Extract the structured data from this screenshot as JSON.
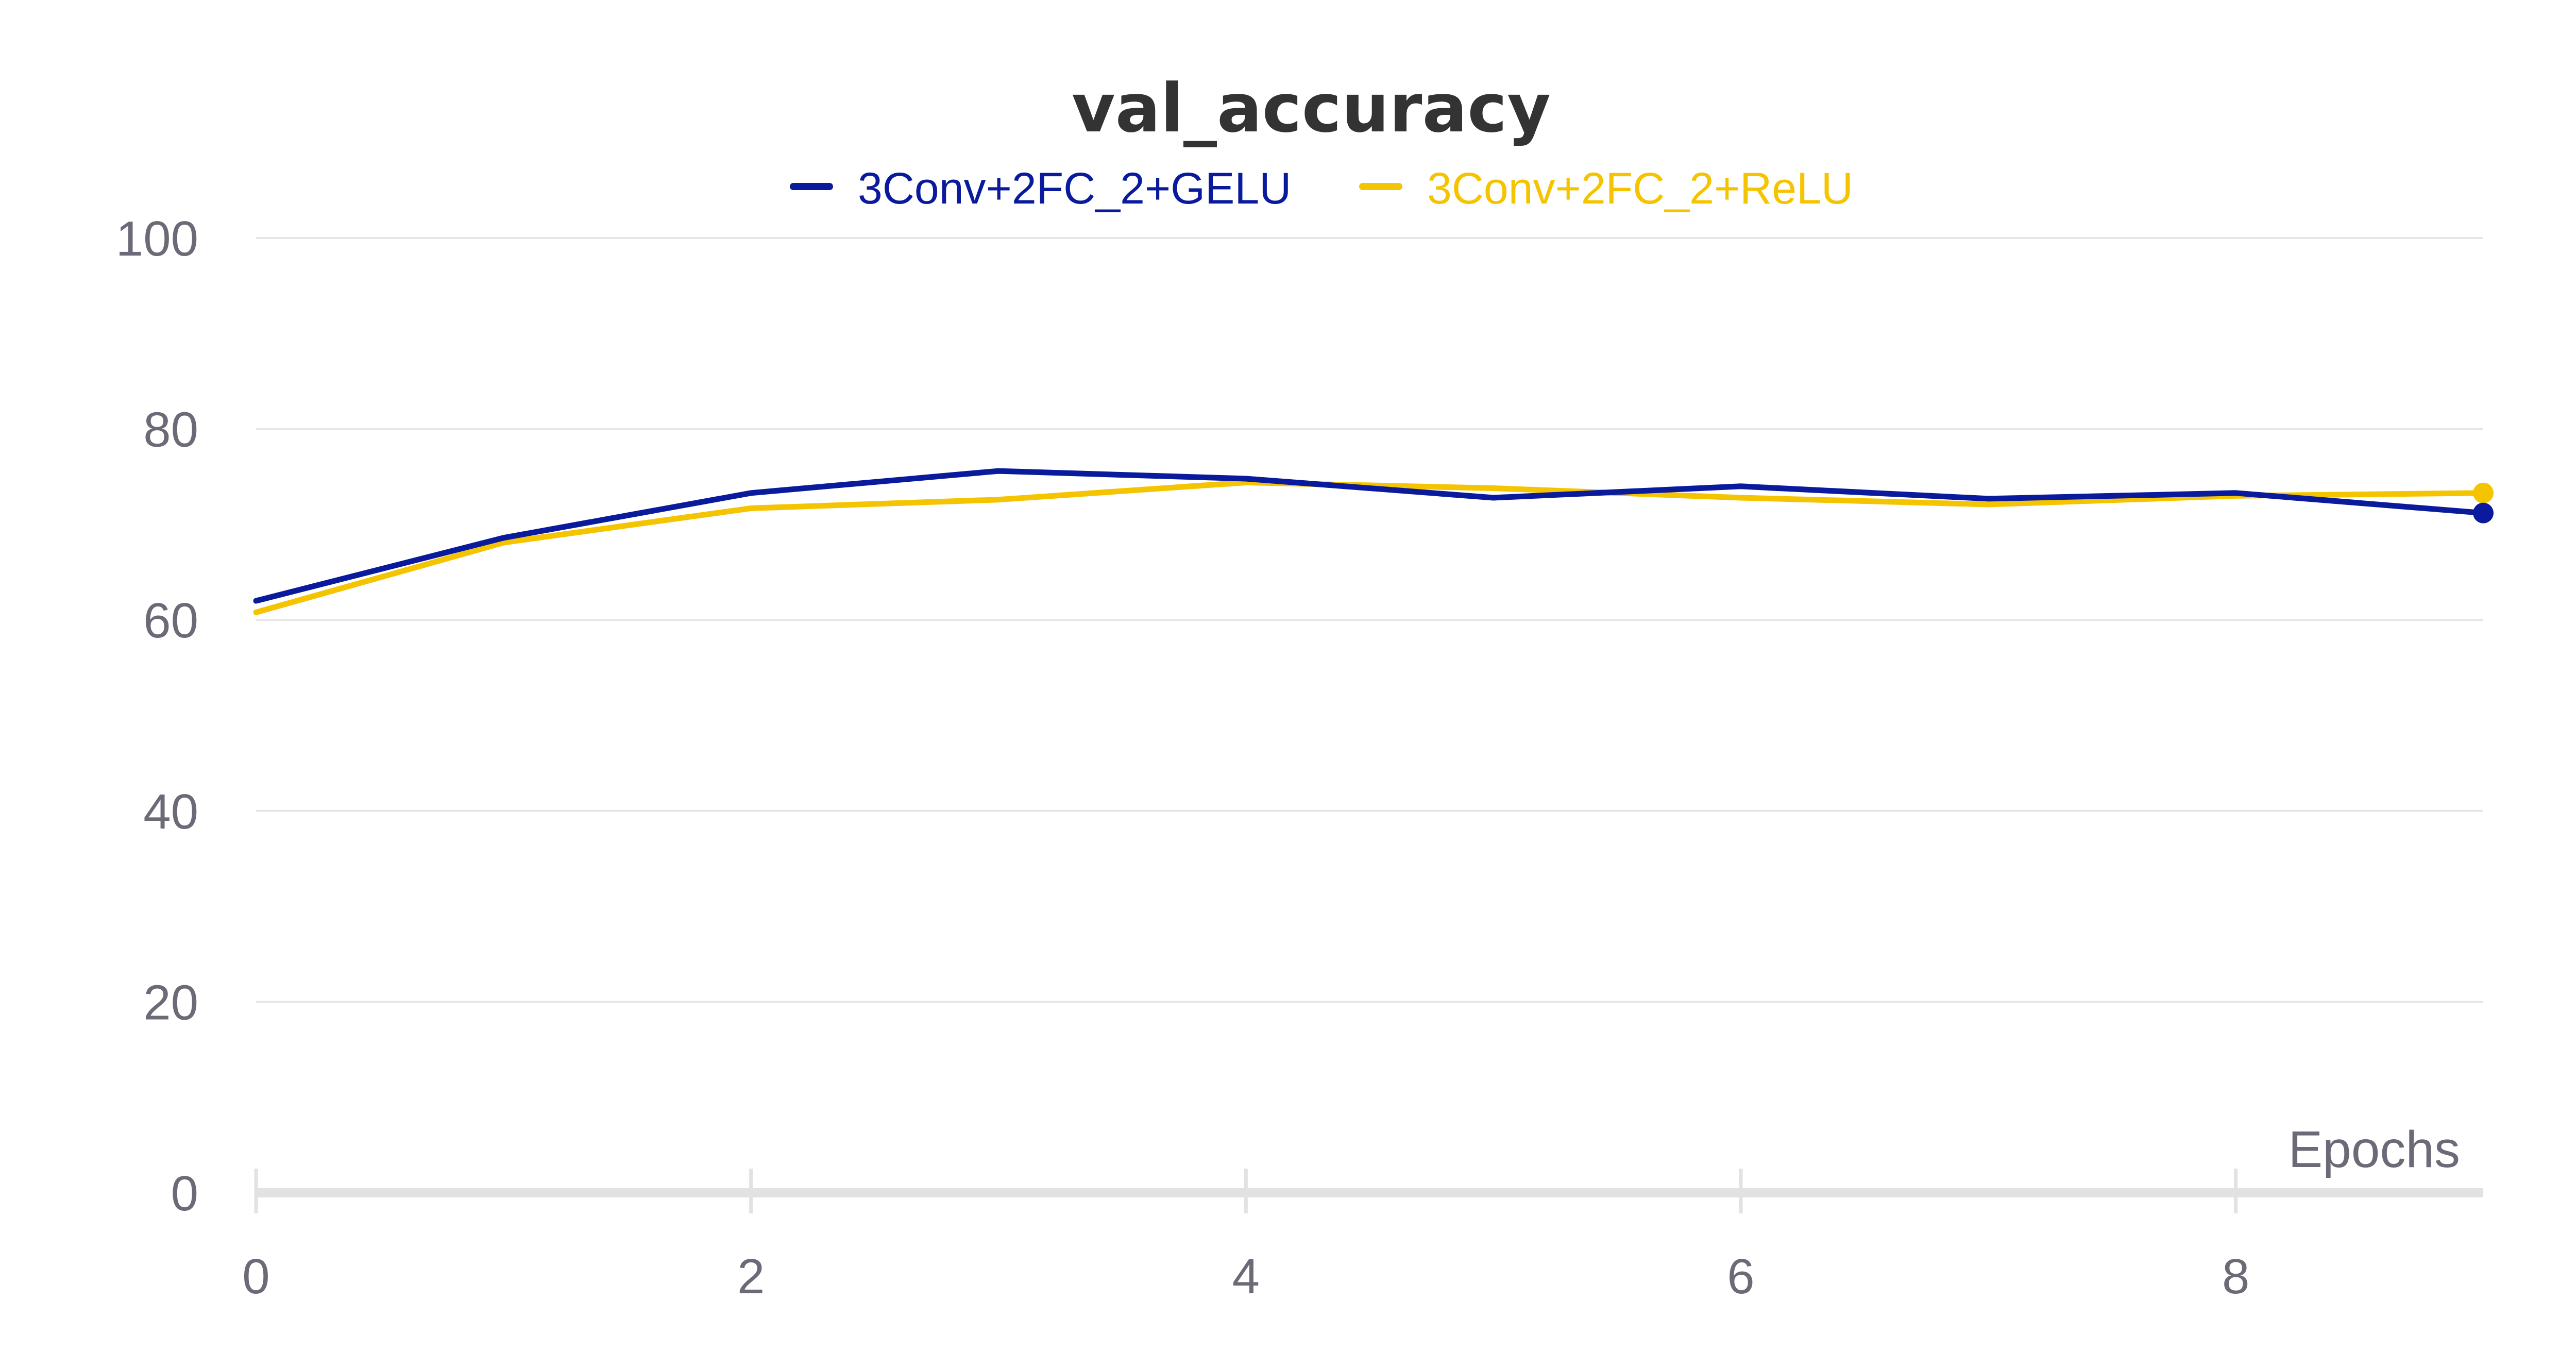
{
  "chart_data": {
    "type": "line",
    "title": "val_accuracy",
    "xlabel": "Epochs",
    "ylabel": "",
    "xlim": [
      0,
      9
    ],
    "ylim": [
      0,
      100
    ],
    "x_ticks": [
      "0",
      "2",
      "4",
      "6",
      "8"
    ],
    "y_ticks": [
      "0",
      "20",
      "40",
      "60",
      "80",
      "100"
    ],
    "grid": true,
    "legend_position": "top-center",
    "x": [
      0,
      1,
      2,
      3,
      4,
      5,
      6,
      7,
      8,
      9
    ],
    "series": [
      {
        "name": "3Conv+2FC_2+GELU",
        "color": "#0a1a9c",
        "values": [
          62,
          68.6,
          73.3,
          75.6,
          74.8,
          72.8,
          74.0,
          72.7,
          73.3,
          71.2
        ]
      },
      {
        "name": "3Conv+2FC_2+ReLU",
        "color": "#f5c400",
        "values": [
          60.8,
          68.1,
          71.7,
          72.6,
          74.4,
          73.8,
          72.8,
          72.1,
          73.0,
          73.3
        ]
      }
    ]
  }
}
